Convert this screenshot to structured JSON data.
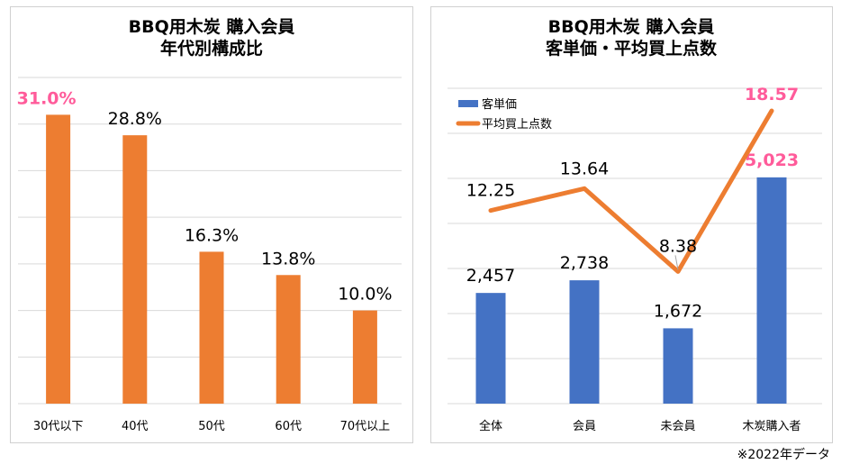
{
  "chart_data": [
    {
      "type": "bar",
      "title": [
        "BBQ用木炭 購入会員",
        "年代別構成比"
      ],
      "categories": [
        "30代以下",
        "40代",
        "50代",
        "60代",
        "70代以上"
      ],
      "values": [
        31.0,
        28.8,
        16.3,
        13.8,
        10.0
      ],
      "labels": [
        "31.0%",
        "28.8%",
        "16.3%",
        "13.8%",
        "10.0%"
      ],
      "highlight_index": 0,
      "ylim": [
        0,
        35
      ],
      "grid": true,
      "color": "#ed7d31",
      "highlight_color": "#ff5b9a"
    },
    {
      "type": "bar+line",
      "title": [
        "BBQ用木炭 購入会員",
        "客単価・平均買上点数"
      ],
      "categories": [
        "全体",
        "会員",
        "未会員",
        "木炭購入者"
      ],
      "series": [
        {
          "name": "客単価",
          "type": "bar",
          "values": [
            2457,
            2738,
            1672,
            5023
          ],
          "labels": [
            "2,457",
            "2,738",
            "1,672",
            "5,023"
          ],
          "color": "#4472c4",
          "ylim": [
            0,
            7000
          ]
        },
        {
          "name": "平均買上点数",
          "type": "line",
          "values": [
            12.25,
            13.64,
            8.38,
            18.57
          ],
          "labels": [
            "12.25",
            "13.64",
            "8.38",
            "18.57"
          ],
          "color": "#ed7d31",
          "ylim": [
            0,
            20
          ]
        }
      ],
      "highlight_index": 3,
      "legend": "top-left",
      "grid": true,
      "highlight_color": "#ff5b9a"
    }
  ],
  "footnote": "※2022年データ"
}
